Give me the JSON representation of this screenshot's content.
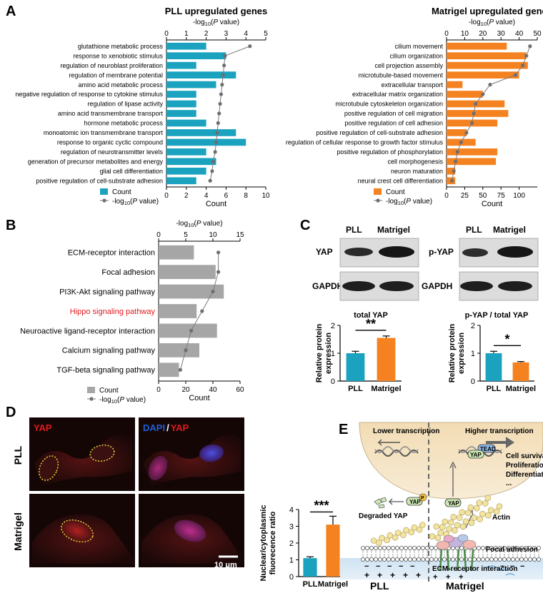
{
  "panel_letters": {
    "a": "A",
    "b": "B",
    "c": "C",
    "d": "D",
    "e": "E"
  },
  "colors": {
    "teal": "#1aa2bf",
    "orange": "#f58220",
    "gray": "#a6a6a6",
    "dot": "#6e6e6e",
    "red": "#e31a1c",
    "blue": "#1f5fd6",
    "bar_blue": "#1aa2bf",
    "bar_orange": "#f58220",
    "micro_bg": "#1c0a0a"
  },
  "chart_data": [
    {
      "id": "pll_go",
      "type": "bar",
      "orientation": "horizontal",
      "title": "PLL upregulated genes",
      "top_axis_label": "-log10(P value)",
      "top_ticks": [
        0,
        1,
        2,
        3,
        4,
        5
      ],
      "top_lim": [
        0,
        5
      ],
      "xlabel": "Count",
      "bottom_ticks": [
        0,
        2,
        4,
        6,
        8,
        10
      ],
      "xlim": [
        0,
        10
      ],
      "categories": [
        "glutathione metabolic process",
        "response to xenobiotic stimulus",
        "regulation of neuroblast proliferation",
        "regulation of membrane potential",
        "amino acid metabolic process",
        "negative regulation of response to cytokine stimulus",
        "regulation of lipase activity",
        "amino acid transmembrane transport",
        "hormone metabolic process",
        "monoatomic ion transmembrane transport",
        "response to organic cyclic compound",
        "regulation of neurotransmitter levels",
        "generation of precursor metabolites and energy",
        "glial cell differentiation",
        "positive regulation of cell-substrate adhesion"
      ],
      "series": [
        {
          "name": "Count",
          "values": [
            4,
            6,
            3,
            7,
            5,
            3,
            3,
            3,
            4,
            7,
            8,
            4,
            5,
            4,
            3
          ]
        },
        {
          "name": "-log10(P value)",
          "values": [
            4.2,
            2.95,
            2.9,
            2.85,
            2.8,
            2.75,
            2.7,
            2.65,
            2.6,
            2.55,
            2.5,
            2.45,
            2.35,
            2.3,
            2.2
          ]
        }
      ],
      "legend": [
        "Count",
        "-log10(P value)"
      ]
    },
    {
      "id": "matrigel_go",
      "type": "bar",
      "orientation": "horizontal",
      "title": "Matrigel upregulated genes",
      "top_axis_label": "-log10(P value)",
      "top_ticks": [
        0,
        10,
        20,
        30,
        40,
        50
      ],
      "top_lim": [
        0,
        50
      ],
      "xlabel": "Count",
      "bottom_ticks": [
        0,
        25,
        50,
        75,
        100
      ],
      "xlim": [
        0,
        125
      ],
      "categories": [
        "cilium movement",
        "cilium organization",
        "cell projection assembly",
        "microtubule-based movement",
        "extracellular transport",
        "extracellular matrix organization",
        "microtubule cytoskeleton organization",
        "positive regulation of cell migration",
        "positive regulation of cell adhesion",
        "positive regulation of cell-substrate adhesion",
        "regulation of cellular response to growth factor stimulus",
        "positive regulation of phosphorylation",
        "cell morphogenesis",
        "neuron maturation",
        "neural crest cell differentiation"
      ],
      "series": [
        {
          "name": "Count",
          "values": [
            83,
            110,
            112,
            100,
            22,
            50,
            80,
            85,
            70,
            28,
            40,
            70,
            68,
            12,
            12
          ]
        },
        {
          "name": "-log10(P value)",
          "values": [
            46,
            44,
            42,
            38,
            24,
            20,
            16,
            15,
            14,
            11,
            8,
            6,
            5,
            4,
            3
          ]
        }
      ],
      "legend": [
        "Count",
        "-log10(P value)"
      ]
    },
    {
      "id": "kegg",
      "type": "bar",
      "orientation": "horizontal",
      "top_axis_label": "-log10(P value)",
      "top_ticks": [
        0,
        5,
        10,
        15
      ],
      "top_lim": [
        0,
        15
      ],
      "xlabel": "Count",
      "bottom_ticks": [
        0,
        20,
        40,
        60
      ],
      "xlim": [
        0,
        60
      ],
      "categories": [
        "ECM-receptor interaction",
        "Focal adhesion",
        "PI3K-Akt signaling pathway",
        "Hippo signaling pathway",
        "Neuroactive ligand-receptor interaction",
        "Calcium signaling pathway",
        "TGF-beta signaling pathway"
      ],
      "highlight": "Hippo signaling pathway",
      "series": [
        {
          "name": "Count",
          "values": [
            26,
            42,
            48,
            28,
            43,
            30,
            15
          ]
        },
        {
          "name": "-log10(P value)",
          "values": [
            11,
            11,
            10,
            8,
            6,
            5,
            4
          ]
        }
      ],
      "legend": [
        "Count",
        "-log10(P value)"
      ]
    },
    {
      "id": "total_yap",
      "type": "bar",
      "title": "total YAP",
      "ylabel": "Relative protein expression",
      "yticks": [
        0,
        1,
        2
      ],
      "ylim": [
        0,
        2
      ],
      "categories": [
        "PLL",
        "Matrigel"
      ],
      "values": [
        1.0,
        1.55
      ],
      "errors": [
        0.07,
        0.07
      ],
      "significance": "**"
    },
    {
      "id": "pyap",
      "type": "bar",
      "title": "p-YAP / total YAP",
      "ylabel": "Relative protein expression",
      "yticks": [
        0,
        1,
        2
      ],
      "ylim": [
        0,
        2
      ],
      "categories": [
        "PLL",
        "Matrigel"
      ],
      "values": [
        1.0,
        0.67
      ],
      "errors": [
        0.07,
        0.03
      ],
      "significance": "*"
    },
    {
      "id": "nuc_cyto",
      "type": "bar",
      "ylabel": "Nuclear/cytoplasmic fluorecence ratio",
      "yticks": [
        0,
        1,
        2,
        3,
        4
      ],
      "ylim": [
        0,
        4
      ],
      "categories": [
        "PLL",
        "Matrigel"
      ],
      "values": [
        1.1,
        3.1
      ],
      "errors": [
        0.08,
        0.5
      ],
      "significance": "***"
    }
  ],
  "blots": {
    "lane_left": "PLL",
    "lane_right": "Matrigel",
    "rows_left": [
      "YAP",
      "GAPDH"
    ],
    "rows_right": [
      "p-YAP",
      "GAPDH"
    ]
  },
  "micro": {
    "row_pll": "PLL",
    "row_mat": "Matrigel",
    "ch_yap": "YAP",
    "ch_dapi": "DAPI",
    "ch_slash": "/",
    "ch_yap2": "YAP",
    "scale": "10 μm"
  },
  "schematic": {
    "lower": "Lower transcription",
    "higher": "Higher transcription",
    "tead": "TEAD",
    "yap": "YAP",
    "p": "P",
    "outcomes": [
      "Cell survival,",
      "Proliferation,",
      "Differentiation",
      "..."
    ],
    "degraded": "Degraded YAP",
    "actin": "Actin",
    "focal": "Focal adhesion",
    "ecm": "ECM-receptor interaction",
    "pll": "PLL",
    "matrigel": "Matrigel",
    "plus": "+",
    "minus": "−"
  }
}
